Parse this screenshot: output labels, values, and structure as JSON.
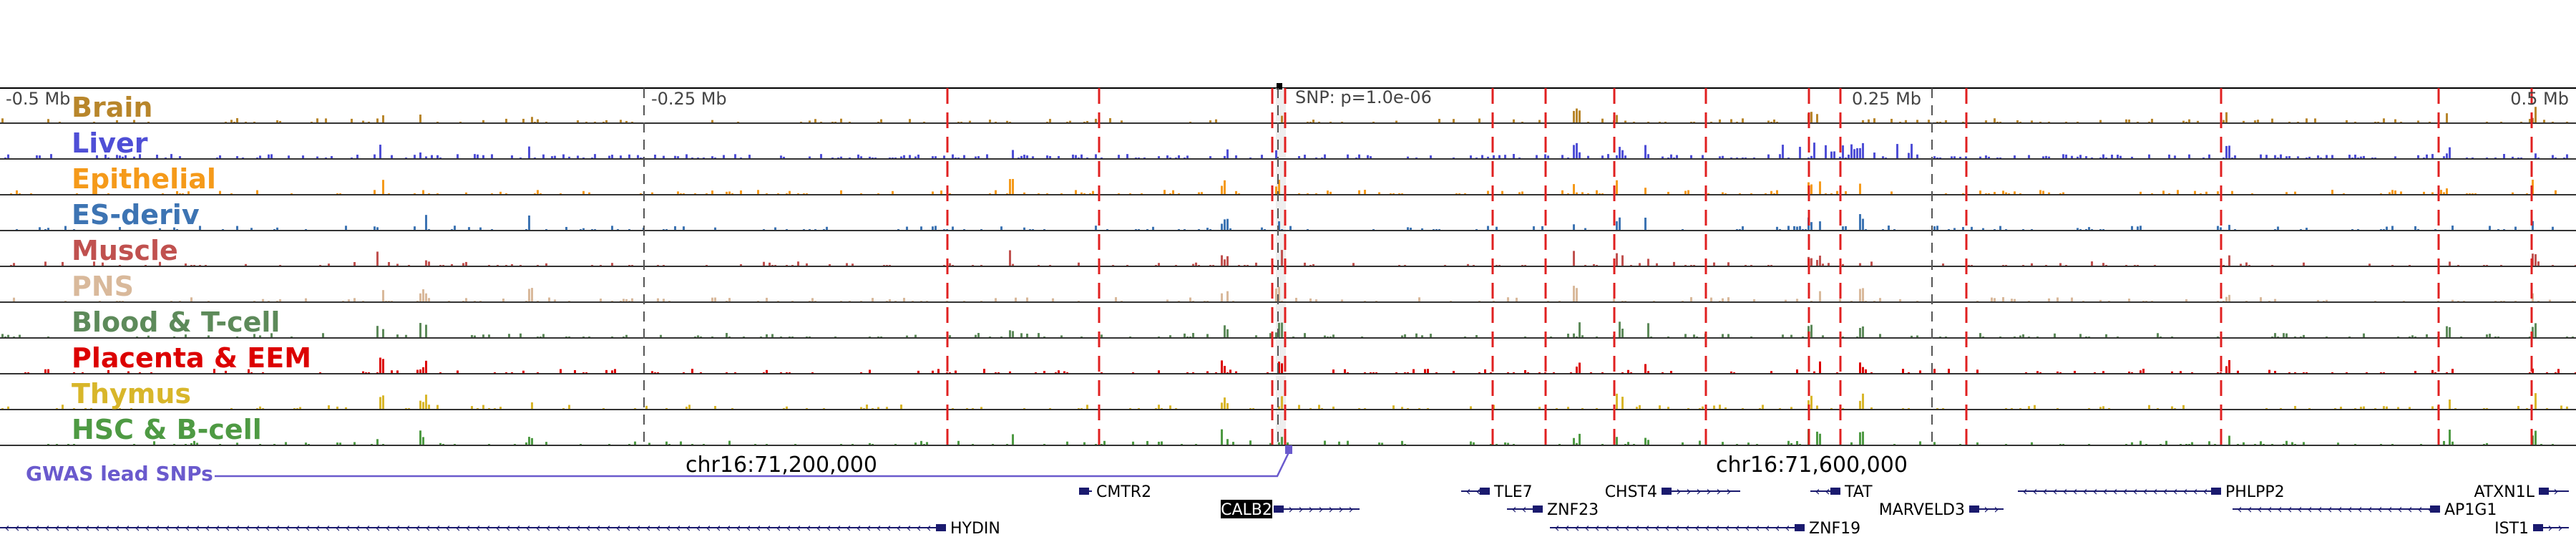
{
  "region": {
    "chrom": "chr16",
    "center_label_left": "chr16:71,200,000",
    "center_label_right": "chr16:71,600,000",
    "axis_ticks": [
      {
        "label": "-0.5 Mb",
        "offset_mb": -0.5
      },
      {
        "label": "-0.25 Mb",
        "offset_mb": -0.25
      },
      {
        "label": "0.25 Mb",
        "offset_mb": 0.25
      },
      {
        "label": "0.5 Mb",
        "offset_mb": 0.5
      }
    ],
    "snp_label": "SNP: p=1.0e-06",
    "gwas_label": "GWAS lead SNPs"
  },
  "tracks": [
    {
      "name": "Brain",
      "color": "#b8862b"
    },
    {
      "name": "Liver",
      "color": "#4f4fd6"
    },
    {
      "name": "Epithelial",
      "color": "#f59a1a"
    },
    {
      "name": "ES-deriv",
      "color": "#3d74b3"
    },
    {
      "name": "Muscle",
      "color": "#c0514f"
    },
    {
      "name": "PNS",
      "color": "#d9b99b"
    },
    {
      "name": "Blood & T-cell",
      "color": "#5d8a5a"
    },
    {
      "name": "Placenta & EEM",
      "color": "#dc0000"
    },
    {
      "name": "Thymus",
      "color": "#d8b62a"
    },
    {
      "name": "HSC & B-cell",
      "color": "#4e9a43"
    }
  ],
  "genes": [
    {
      "name": "CMTR2",
      "strand": "+"
    },
    {
      "name": "CALB2",
      "strand": "+",
      "highlight": true
    },
    {
      "name": "TLE7",
      "strand": "-"
    },
    {
      "name": "ZNF23",
      "strand": "-"
    },
    {
      "name": "CHST4",
      "strand": "+"
    },
    {
      "name": "TAT",
      "strand": "-"
    },
    {
      "name": "MARVELD3",
      "strand": "+"
    },
    {
      "name": "PHLPP2",
      "strand": "-"
    },
    {
      "name": "ATXN1L",
      "strand": "+"
    },
    {
      "name": "AP1G1",
      "strand": "-"
    },
    {
      "name": "HYDIN",
      "strand": "-"
    },
    {
      "name": "ZNF19",
      "strand": "-"
    },
    {
      "name": "IST1",
      "strand": "+"
    }
  ]
}
